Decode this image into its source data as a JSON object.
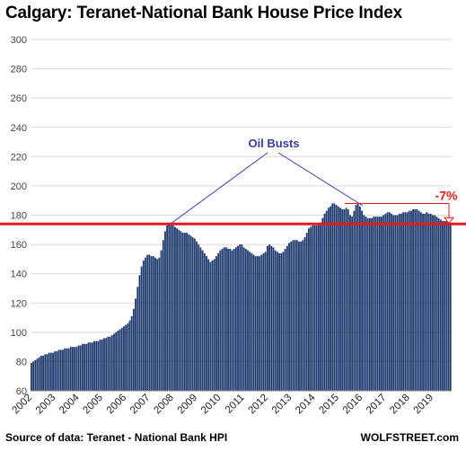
{
  "chart_data": {
    "type": "bar",
    "title": "Calgary: Teranet-National Bank House Price Index",
    "xlabel": "",
    "ylabel": "",
    "ylim": [
      60,
      300
    ],
    "yticks": [
      60,
      80,
      100,
      120,
      140,
      160,
      180,
      200,
      220,
      240,
      260,
      280,
      300
    ],
    "xticks": [
      "2002",
      "2003",
      "2004",
      "2005",
      "2006",
      "2007",
      "2008",
      "2009",
      "2010",
      "2011",
      "2012",
      "2013",
      "2014",
      "2015",
      "2016",
      "2017",
      "2018",
      "2019"
    ],
    "x_start": "2002-01",
    "frequency": "monthly",
    "grid": "horizontal",
    "bar_color": "#1f3a6e",
    "reference_line": {
      "value": 174,
      "color": "#e31b1b"
    },
    "annotations": {
      "oil_busts": "Oil Busts",
      "decline": "-7%"
    },
    "yearly_anchors": {
      "2002": [
        79,
        80,
        81,
        82,
        83,
        84,
        84,
        85,
        85,
        86,
        86,
        86
      ],
      "2003": [
        87,
        87,
        88,
        88,
        88,
        89,
        89,
        89,
        90,
        90,
        90,
        90
      ],
      "2004": [
        91,
        91,
        92,
        92,
        92,
        93,
        93,
        93,
        94,
        94,
        94,
        95
      ],
      "2005": [
        95,
        96,
        96,
        97,
        97,
        98,
        99,
        100,
        101,
        102,
        103,
        104
      ],
      "2006": [
        105,
        106,
        108,
        111,
        116,
        123,
        131,
        139,
        145,
        149,
        151,
        153
      ],
      "2007": [
        153,
        152,
        152,
        151,
        150,
        151,
        156,
        163,
        169,
        173,
        174,
        174
      ],
      "2008": [
        173,
        172,
        171,
        170,
        169,
        168,
        168,
        168,
        167,
        166,
        165,
        164
      ],
      "2009": [
        162,
        160,
        158,
        156,
        154,
        152,
        150,
        148,
        149,
        150,
        152,
        154
      ],
      "2010": [
        156,
        157,
        158,
        158,
        157,
        157,
        156,
        157,
        158,
        159,
        160,
        160
      ],
      "2011": [
        158,
        157,
        156,
        155,
        154,
        153,
        152,
        152,
        152,
        153,
        154,
        155
      ],
      "2012": [
        159,
        160,
        159,
        158,
        156,
        155,
        154,
        154,
        155,
        157,
        159,
        161
      ],
      "2013": [
        162,
        163,
        163,
        163,
        162,
        162,
        163,
        165,
        168,
        171,
        172,
        173
      ],
      "2014": [
        173,
        173,
        174,
        175,
        178,
        181,
        183,
        185,
        186,
        188,
        188,
        187
      ],
      "2015": [
        186,
        185,
        184,
        184,
        185,
        184,
        180,
        179,
        183,
        187,
        188,
        186
      ],
      "2016": [
        183,
        180,
        179,
        178,
        178,
        178,
        179,
        179,
        179,
        179,
        179,
        180
      ],
      "2017": [
        181,
        182,
        182,
        181,
        180,
        180,
        180,
        181,
        181,
        182,
        182,
        182
      ],
      "2018": [
        183,
        183,
        184,
        184,
        184,
        183,
        182,
        181,
        181,
        182,
        181,
        181
      ],
      "2019": [
        180,
        180,
        179,
        178,
        177,
        176,
        176,
        176,
        175,
        175
      ]
    }
  },
  "footer": {
    "source": "Source of data: Teranet - National Bank HPI",
    "brand": "WOLFSTREET.com"
  }
}
